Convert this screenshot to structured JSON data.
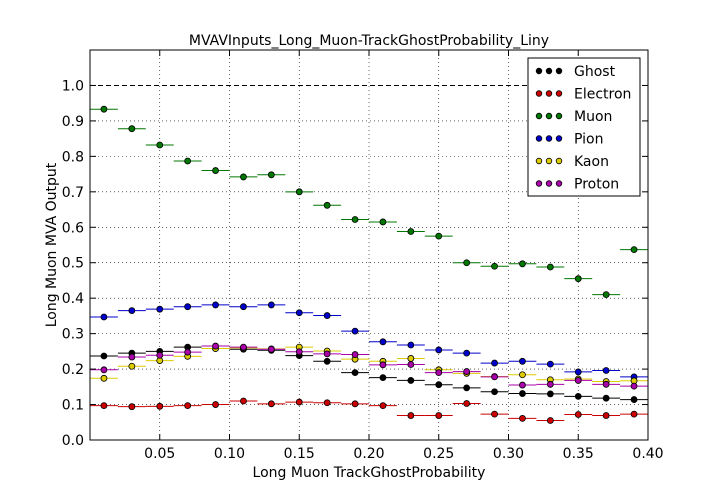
{
  "chart_data": {
    "type": "scatter",
    "title": "MVAVInputs_Long_Muon-TrackGhostProbability_Liny",
    "xlabel": "Long Muon TrackGhostProbability",
    "ylabel": "Long Muon MVA Output",
    "xlim": [
      0.0,
      0.4
    ],
    "ylim": [
      0.0,
      1.1
    ],
    "xticks": [
      0.05,
      0.1,
      0.15,
      0.2,
      0.25,
      0.3,
      0.35,
      0.4
    ],
    "xtick_labels": [
      "0.05",
      "0.10",
      "0.15",
      "0.20",
      "0.25",
      "0.30",
      "0.35",
      "0.40"
    ],
    "yticks": [
      0.0,
      0.1,
      0.2,
      0.3,
      0.4,
      0.5,
      0.6,
      0.7,
      0.8,
      0.9,
      1.0
    ],
    "ytick_labels": [
      "0.0",
      "0.1",
      "0.2",
      "0.3",
      "0.4",
      "0.5",
      "0.6",
      "0.7",
      "0.8",
      "0.9",
      "1.0"
    ],
    "grid": true,
    "reference_line_y": 1.0,
    "legend_position": "top-right",
    "bin_half_width": 0.01,
    "x": [
      0.01,
      0.03,
      0.05,
      0.07,
      0.09,
      0.11,
      0.13,
      0.15,
      0.17,
      0.19,
      0.21,
      0.23,
      0.25,
      0.27,
      0.29,
      0.31,
      0.33,
      0.35,
      0.37,
      0.39
    ],
    "series": [
      {
        "name": "Ghost",
        "color": "#000000",
        "values": [
          0.237,
          0.245,
          0.25,
          0.262,
          0.258,
          0.256,
          0.253,
          0.238,
          0.222,
          0.19,
          0.176,
          0.168,
          0.156,
          0.147,
          0.136,
          0.131,
          0.13,
          0.123,
          0.118,
          0.114
        ]
      },
      {
        "name": "Electron",
        "color": "#cc0000",
        "values": [
          0.097,
          0.094,
          0.095,
          0.097,
          0.1,
          0.11,
          0.102,
          0.107,
          0.105,
          0.102,
          0.097,
          0.069,
          0.069,
          0.103,
          0.073,
          0.061,
          0.055,
          0.072,
          0.069,
          0.073
        ]
      },
      {
        "name": "Muon",
        "color": "#007700",
        "values": [
          0.933,
          0.878,
          0.832,
          0.787,
          0.76,
          0.742,
          0.748,
          0.7,
          0.662,
          0.622,
          0.615,
          0.588,
          0.575,
          0.5,
          0.49,
          0.497,
          0.488,
          0.455,
          0.41,
          0.537
        ]
      },
      {
        "name": "Pion",
        "color": "#0000cc",
        "values": [
          0.347,
          0.365,
          0.369,
          0.376,
          0.381,
          0.376,
          0.381,
          0.359,
          0.351,
          0.307,
          0.277,
          0.268,
          0.254,
          0.245,
          0.217,
          0.222,
          0.214,
          0.192,
          0.196,
          0.178
        ]
      },
      {
        "name": "Kaon",
        "color": "#ddcc00",
        "values": [
          0.174,
          0.208,
          0.224,
          0.236,
          0.258,
          0.26,
          0.257,
          0.262,
          0.251,
          0.228,
          0.222,
          0.23,
          0.198,
          0.188,
          0.179,
          0.184,
          0.17,
          0.172,
          0.165,
          0.167
        ]
      },
      {
        "name": "Proton",
        "color": "#aa00aa",
        "values": [
          0.198,
          0.234,
          0.239,
          0.248,
          0.265,
          0.262,
          0.256,
          0.249,
          0.243,
          0.241,
          0.212,
          0.213,
          0.19,
          0.193,
          0.178,
          0.155,
          0.157,
          0.168,
          0.157,
          0.152
        ]
      }
    ]
  }
}
